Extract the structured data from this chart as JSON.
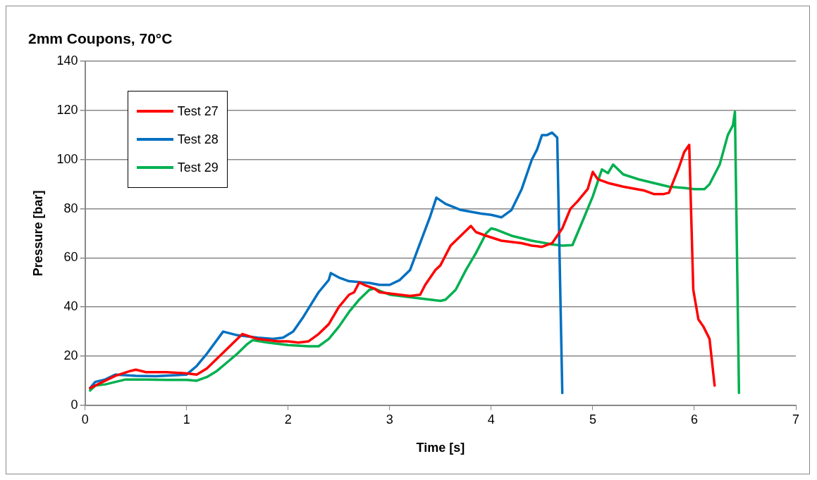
{
  "chart_data": {
    "type": "line",
    "title": "2mm Coupons, 70°C",
    "xlabel": "Time [s]",
    "ylabel": "Pressure [bar]",
    "xlim": [
      0,
      7
    ],
    "xticks": [
      0,
      1,
      2,
      3,
      4,
      5,
      6,
      7
    ],
    "ylim": [
      0,
      140
    ],
    "yticks": [
      0,
      20,
      40,
      60,
      80,
      100,
      120,
      140
    ],
    "grid": "y",
    "legend": "top left",
    "marker": "none",
    "line_style": "solid",
    "series": [
      {
        "name": "Test 27",
        "color": "#ff0000",
        "x": [
          0.05,
          0.15,
          0.3,
          0.45,
          0.5,
          0.6,
          0.8,
          1.0,
          1.1,
          1.2,
          1.3,
          1.4,
          1.5,
          1.55,
          1.7,
          1.9,
          2.0,
          2.1,
          2.2,
          2.3,
          2.4,
          2.5,
          2.6,
          2.65,
          2.7,
          2.75,
          2.85,
          2.9,
          3.0,
          3.2,
          3.3,
          3.35,
          3.45,
          3.5,
          3.6,
          3.7,
          3.8,
          3.85,
          3.95,
          4.1,
          4.3,
          4.4,
          4.5,
          4.6,
          4.7,
          4.78,
          4.85,
          4.95,
          5.0,
          5.05,
          5.15,
          5.3,
          5.5,
          5.6,
          5.7,
          5.75,
          5.85,
          5.9,
          5.95,
          5.99,
          6.04,
          6.09,
          6.15,
          6.2
        ],
        "values": [
          7,
          9,
          12,
          14,
          14.5,
          13.5,
          13.5,
          13,
          12.5,
          15,
          19,
          23,
          27,
          29,
          27,
          26,
          26,
          25.5,
          26,
          29,
          33,
          40,
          45,
          46,
          50,
          49,
          47.5,
          46,
          45.5,
          44.5,
          45,
          49,
          55,
          57,
          65,
          69,
          73,
          70.5,
          69,
          67,
          66,
          65,
          64.5,
          66,
          72,
          80,
          83,
          88,
          95,
          92,
          90.5,
          89,
          87.5,
          86,
          86,
          86.5,
          97,
          103,
          106,
          47,
          35,
          32,
          27,
          8
        ]
      },
      {
        "name": "Test 28",
        "color": "#0070c0",
        "x": [
          0.05,
          0.1,
          0.2,
          0.3,
          0.5,
          0.7,
          1.0,
          1.1,
          1.2,
          1.36,
          1.5,
          1.7,
          1.85,
          1.95,
          2.05,
          2.15,
          2.3,
          2.4,
          2.42,
          2.5,
          2.6,
          2.8,
          2.9,
          3.0,
          3.1,
          3.2,
          3.3,
          3.4,
          3.46,
          3.55,
          3.7,
          3.9,
          4.0,
          4.1,
          4.2,
          4.3,
          4.4,
          4.45,
          4.5,
          4.55,
          4.6,
          4.65,
          4.7
        ],
        "values": [
          7,
          9.5,
          10.5,
          12.5,
          12,
          11.8,
          12.5,
          16,
          21,
          30,
          28.5,
          27.5,
          27,
          27.5,
          30,
          36,
          46,
          51,
          53.8,
          52,
          50.5,
          49.8,
          49,
          49,
          51,
          55,
          66,
          77,
          84.5,
          82,
          79.5,
          78,
          77.5,
          76.5,
          79.5,
          88,
          100,
          104,
          110,
          110,
          111,
          109,
          5
        ]
      },
      {
        "name": "Test 29",
        "color": "#00b050",
        "x": [
          0.05,
          0.1,
          0.2,
          0.3,
          0.4,
          0.6,
          0.8,
          1.0,
          1.1,
          1.2,
          1.3,
          1.4,
          1.5,
          1.6,
          1.65,
          1.8,
          2.0,
          2.2,
          2.3,
          2.4,
          2.5,
          2.6,
          2.7,
          2.8,
          2.85,
          3.0,
          3.2,
          3.4,
          3.5,
          3.55,
          3.65,
          3.75,
          3.85,
          3.95,
          4.0,
          4.05,
          4.2,
          4.4,
          4.6,
          4.7,
          4.8,
          4.9,
          5.0,
          5.09,
          5.15,
          5.2,
          5.3,
          5.45,
          5.6,
          5.75,
          5.9,
          6.0,
          6.1,
          6.15,
          6.25,
          6.33,
          6.38,
          6.4,
          6.44
        ],
        "values": [
          6,
          8,
          8.5,
          9.5,
          10.5,
          10.5,
          10.3,
          10.3,
          10,
          11.5,
          14,
          17.5,
          21,
          25,
          26.5,
          25.5,
          24.5,
          24,
          24,
          27,
          32,
          38,
          43,
          47,
          47.5,
          45,
          44,
          43,
          42.5,
          43,
          47,
          55,
          62,
          70,
          72,
          71.5,
          69,
          67,
          65.5,
          65,
          65.2,
          75,
          85,
          96,
          94.5,
          98,
          94,
          92,
          90.5,
          89,
          88.5,
          88,
          88,
          90,
          98,
          110,
          114,
          119.5,
          5
        ]
      }
    ]
  }
}
